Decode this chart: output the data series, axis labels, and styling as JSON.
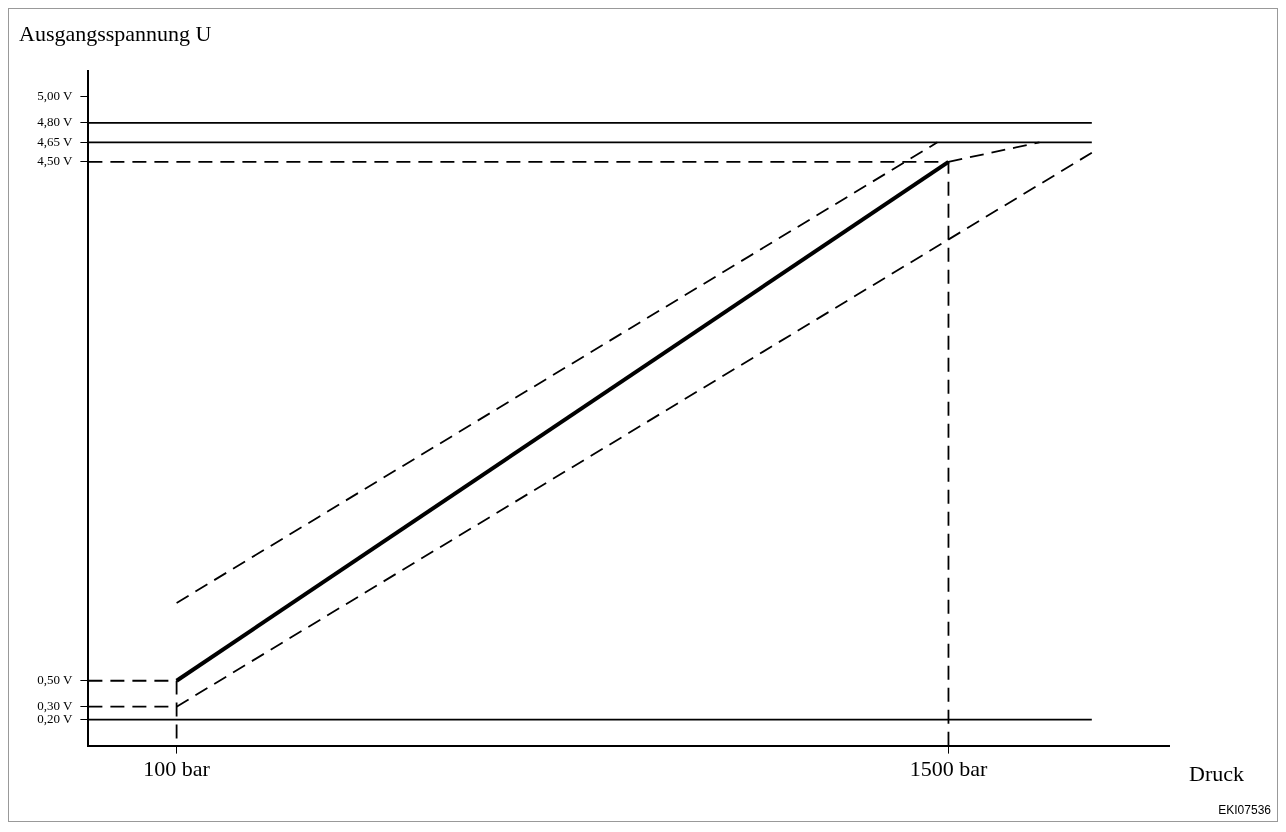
{
  "chart_data": {
    "type": "line",
    "ylabel": "Ausgangsspannung U",
    "xlabel": "Druck",
    "xlim": [
      -60,
      1900
    ],
    "xticks": [
      {
        "value": 100,
        "label": "100 bar"
      },
      {
        "value": 1500,
        "label": "1500 bar"
      }
    ],
    "ylim": [
      0,
      5.2
    ],
    "yticks": [
      {
        "value": 0.2,
        "label": "0,20 V"
      },
      {
        "value": 0.3,
        "label": "0,30 V"
      },
      {
        "value": 0.5,
        "label": "0,50 V"
      },
      {
        "value": 4.5,
        "label": "4,50 V"
      },
      {
        "value": 4.65,
        "label": "4,65 V"
      },
      {
        "value": 4.8,
        "label": "4,80 V"
      },
      {
        "value": 5.0,
        "label": "5,00 V"
      }
    ],
    "grid": false,
    "legend": false,
    "marker": "none",
    "series": [
      {
        "color": "#000000",
        "line_style": "solid",
        "x": [
          100,
          1500
        ],
        "values": [
          0.5,
          4.5
        ]
      },
      {
        "color": "#000000",
        "line_style": "dashed",
        "x": [
          100,
          1480
        ],
        "values": [
          1.1,
          4.65
        ]
      },
      {
        "color": "#000000",
        "line_style": "dashed",
        "x": [
          1500,
          1665
        ],
        "values": [
          4.5,
          4.65
        ]
      },
      {
        "color": "#000000",
        "line_style": "dashed",
        "x": [
          100,
          1760
        ],
        "values": [
          0.3,
          4.57
        ]
      },
      {
        "color": "#000000",
        "line_style": "solid",
        "x": [
          -60,
          1760
        ],
        "values": [
          4.8,
          4.8
        ]
      },
      {
        "color": "#000000",
        "line_style": "solid",
        "x": [
          -60,
          1760
        ],
        "values": [
          4.65,
          4.65
        ]
      },
      {
        "color": "#000000",
        "line_style": "solid",
        "x": [
          -60,
          1760
        ],
        "values": [
          0.2,
          0.2
        ]
      },
      {
        "color": "#000000",
        "line_style": "dashed",
        "x": [
          -60,
          100,
          100
        ],
        "values": [
          0.5,
          0.5,
          0
        ]
      },
      {
        "color": "#000000",
        "line_style": "dashed",
        "x": [
          -60,
          100
        ],
        "values": [
          0.3,
          0.3
        ]
      },
      {
        "color": "#000000",
        "line_style": "dashed",
        "x": [
          -60,
          1500,
          1500
        ],
        "values": [
          4.5,
          4.5,
          0
        ]
      }
    ],
    "annotations": [
      "EKI07536"
    ]
  }
}
